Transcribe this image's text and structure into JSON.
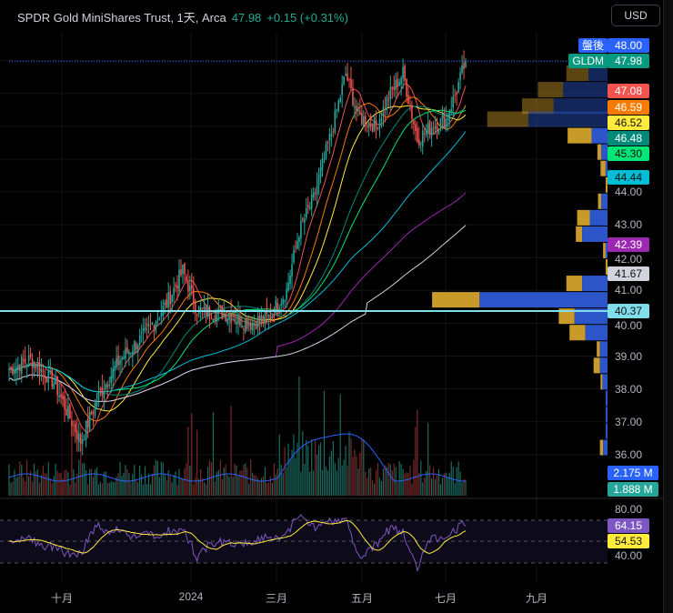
{
  "header": {
    "symbol_name": "SPDR Gold MiniShares Trust, 1天, Arca",
    "last": "47.98",
    "change": "+0.15 (+0.31%)",
    "currency": "USD"
  },
  "price_axis": {
    "ticks": [
      "44.00",
      "43.00",
      "42.00",
      "41.00",
      "40.00",
      "39.00",
      "38.00",
      "37.00",
      "36.00"
    ]
  },
  "price_labels": [
    {
      "tag": "盤後",
      "value": "48.00",
      "color": "#2962ff",
      "price": 48.0
    },
    {
      "tag": "GLDM",
      "value": "47.98",
      "color": "#089981",
      "price": 47.98
    },
    {
      "value": "47.08",
      "color": "#f05350",
      "price": 47.08
    },
    {
      "value": "46.59",
      "color": "#f57c00",
      "price": 46.59
    },
    {
      "value": "46.52",
      "color": "#ffeb3b",
      "price": 46.52,
      "dark": true
    },
    {
      "value": "46.48",
      "color": "#00897b",
      "price": 46.48
    },
    {
      "value": "45.30",
      "color": "#00e676",
      "price": 45.3,
      "dark": true
    },
    {
      "value": "44.44",
      "color": "#00bcd4",
      "price": 44.44,
      "dark": true
    },
    {
      "value": "42.39",
      "color": "#9c27b0",
      "price": 42.39
    },
    {
      "value": "41.67",
      "color": "#d1d4dc",
      "price": 41.67,
      "dark": true
    },
    {
      "value": "40.37",
      "color": "#80deea",
      "price": 40.37,
      "dark": true
    }
  ],
  "volume_labels": [
    {
      "value": "2.175 M",
      "color": "#2962ff"
    },
    {
      "value": "1.888 M",
      "color": "#26a69a"
    }
  ],
  "rsi": {
    "ticks": [
      "80.00",
      "40.00"
    ],
    "value": "64.15",
    "ma": "54.53",
    "value_color": "#7e57c2",
    "ma_color": "#ffeb3b"
  },
  "time_axis": [
    "十月",
    "2024",
    "三月",
    "五月",
    "七月",
    "九月"
  ],
  "chart_data": {
    "type": "candlestick",
    "price_keypoints": [
      [
        0,
        38.6
      ],
      [
        12,
        38.9
      ],
      [
        25,
        38.2
      ],
      [
        35,
        37.0
      ],
      [
        40,
        36.4
      ],
      [
        50,
        37.8
      ],
      [
        62,
        38.9
      ],
      [
        75,
        39.6
      ],
      [
        88,
        40.6
      ],
      [
        97,
        41.6
      ],
      [
        105,
        40.4
      ],
      [
        120,
        40.3
      ],
      [
        135,
        40.0
      ],
      [
        145,
        40.2
      ],
      [
        155,
        41.0
      ],
      [
        162,
        42.8
      ],
      [
        170,
        43.8
      ],
      [
        180,
        45.8
      ],
      [
        188,
        47.6
      ],
      [
        195,
        46.3
      ],
      [
        205,
        46.0
      ],
      [
        212,
        46.9
      ],
      [
        220,
        47.6
      ],
      [
        228,
        45.6
      ],
      [
        236,
        46.0
      ],
      [
        244,
        46.2
      ],
      [
        250,
        47.1
      ],
      [
        255,
        47.98
      ]
    ],
    "ma_periods": [
      10,
      20,
      30,
      50,
      60,
      100,
      150,
      200
    ],
    "ma_colors": [
      "#f05350",
      "#f57c00",
      "#ffeb3b",
      "#00897b",
      "#00e676",
      "#00bcd4",
      "#9c27b0",
      "#d1d4dc"
    ],
    "volume_profile": [
      {
        "price": 47.6,
        "up": 30,
        "down": 35
      },
      {
        "price": 47.1,
        "up": 70,
        "down": 40
      },
      {
        "price": 46.6,
        "up": 85,
        "down": 50
      },
      {
        "price": 46.2,
        "up": 125,
        "down": 65
      },
      {
        "price": 45.7,
        "up": 25,
        "down": 38
      },
      {
        "price": 45.2,
        "up": 10,
        "down": 6
      },
      {
        "price": 44.7,
        "up": 3,
        "down": 8
      },
      {
        "price": 44.2,
        "up": 0,
        "down": 3
      },
      {
        "price": 43.7,
        "up": 10,
        "down": 5
      },
      {
        "price": 43.2,
        "up": 28,
        "down": 20
      },
      {
        "price": 42.7,
        "up": 40,
        "down": 10
      },
      {
        "price": 42.2,
        "up": 3,
        "down": 4
      },
      {
        "price": 41.7,
        "up": 0,
        "down": 3
      },
      {
        "price": 41.2,
        "up": 40,
        "down": 25
      },
      {
        "price": 40.7,
        "up": 202,
        "down": 75
      },
      {
        "price": 40.2,
        "up": 52,
        "down": 25
      },
      {
        "price": 39.7,
        "up": 35,
        "down": 25
      },
      {
        "price": 39.2,
        "up": 12,
        "down": 5
      },
      {
        "price": 38.7,
        "up": 12,
        "down": 10
      },
      {
        "price": 38.2,
        "up": 8,
        "down": 3
      },
      {
        "price": 37.7,
        "up": 3,
        "down": 0
      },
      {
        "price": 37.2,
        "up": 3,
        "down": 0
      },
      {
        "price": 36.7,
        "up": 3,
        "down": 0
      },
      {
        "price": 36.2,
        "up": 7,
        "down": 5
      }
    ]
  }
}
